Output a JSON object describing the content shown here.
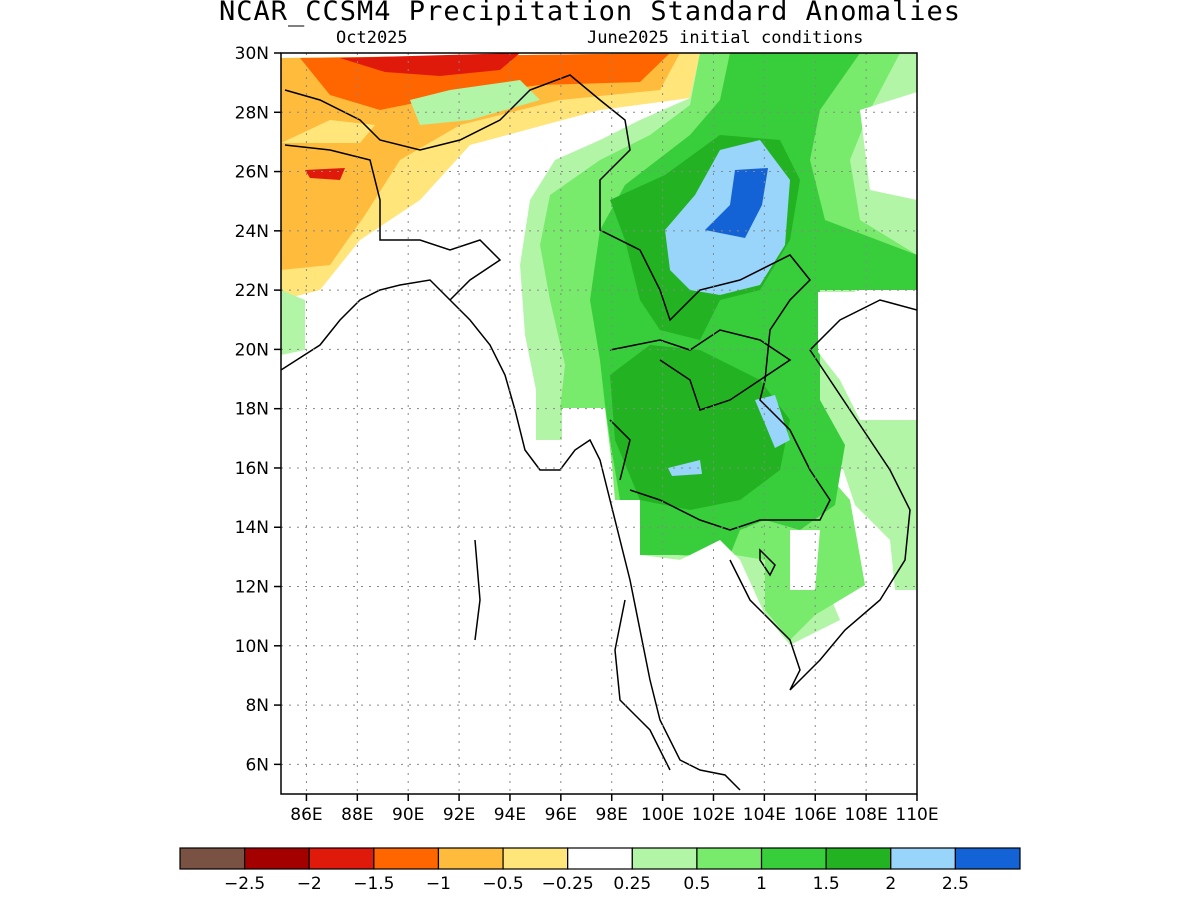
{
  "title": "NCAR_CCSM4 Precipitation Standard Anomalies",
  "subtitle_left": "Oct2025",
  "subtitle_right": "June2025 initial conditions",
  "map": {
    "lat_labels": [
      "30N",
      "28N",
      "26N",
      "24N",
      "22N",
      "20N",
      "18N",
      "16N",
      "14N",
      "12N",
      "10N",
      "8N",
      "6N"
    ],
    "lon_labels": [
      "86E",
      "88E",
      "90E",
      "92E",
      "94E",
      "96E",
      "98E",
      "100E",
      "102E",
      "104E",
      "106E",
      "108E",
      "110E"
    ],
    "lat_range": [
      5,
      30
    ],
    "lon_range": [
      85,
      110
    ],
    "grid": "dotted"
  },
  "colorbar": {
    "colors": [
      "#7a5244",
      "#a50000",
      "#e01a0a",
      "#ff6600",
      "#ffbb3c",
      "#ffe57a",
      "#ffffff",
      "#b3f5a7",
      "#78ea6c",
      "#38cd3a",
      "#22b222",
      "#99d4fb",
      "#1463d6"
    ],
    "labels": [
      "−2.5",
      "−2",
      "−1.5",
      "−1",
      "−0.5",
      "−0.25",
      "0.25",
      "0.5",
      "1",
      "1.5",
      "2",
      "2.5"
    ]
  }
}
